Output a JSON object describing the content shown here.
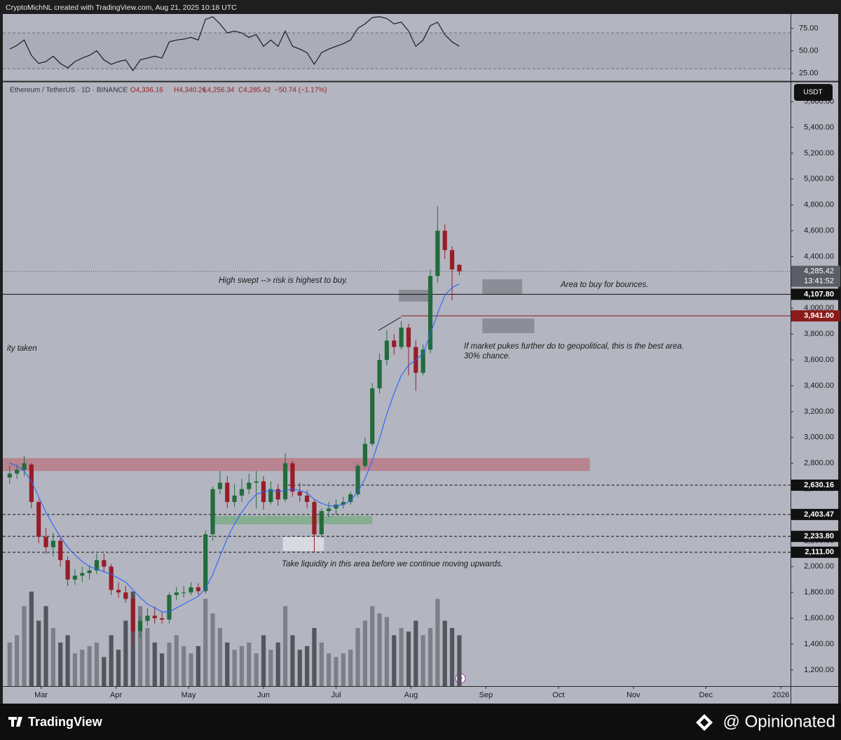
{
  "header": {
    "credit": "CryptoMichNL created with TradingView.com, Aug 21, 2025 10:18 UTC"
  },
  "chart_data": [
    {
      "type": "line",
      "color": "#1c1c1c",
      "band": [
        30,
        70
      ],
      "ylim": [
        17,
        91
      ],
      "xlim": [
        43,
        370
      ],
      "yticks": [
        {
          "value": 25,
          "label": "25.00"
        },
        {
          "value": 50,
          "label": "50.00"
        },
        {
          "value": 75,
          "label": "75.00"
        }
      ],
      "x": [
        47,
        50,
        53,
        56,
        59,
        62,
        65,
        68,
        71,
        74,
        77,
        80,
        83,
        86,
        89,
        92,
        95,
        98,
        101,
        104,
        107,
        110,
        113,
        116,
        119,
        122,
        125,
        128,
        131,
        134,
        137,
        140,
        143,
        146,
        149,
        152,
        155,
        158,
        161,
        164,
        167,
        170,
        173,
        176,
        179,
        182,
        185,
        188,
        191,
        194,
        197,
        200,
        203,
        206,
        209,
        212,
        215,
        218,
        221,
        224,
        227,
        230,
        233
      ],
      "values": [
        52,
        56,
        62,
        45,
        36,
        38,
        44,
        36,
        31,
        38,
        42,
        45,
        50,
        40,
        35,
        38,
        40,
        28,
        40,
        42,
        44,
        42,
        60,
        62,
        63,
        65,
        62,
        85,
        88,
        80,
        70,
        72,
        70,
        65,
        68,
        55,
        62,
        55,
        72,
        55,
        52,
        48,
        35,
        48,
        52,
        55,
        58,
        62,
        75,
        80,
        87,
        88,
        86,
        80,
        82,
        72,
        55,
        62,
        78,
        82,
        68,
        60,
        55
      ]
    },
    {
      "type": "candlestick",
      "symbol": "Ethereum / TetherUS · 1D · BINANCE",
      "ohlc_legend": [
        "O4,336.16",
        "H4,340.26",
        "L4,256.34",
        "C4,285.42",
        "−50.74 (−1.17%)"
      ],
      "currency": "USDT",
      "up_color": "#236b3c",
      "down_color": "#971d28",
      "volume_up_color": "#7c7f87",
      "volume_down_color": "#54565d",
      "grid": false,
      "xlim": [
        43,
        370
      ],
      "ylim": [
        1075,
        5752
      ],
      "xticks": [
        {
          "value": 60,
          "label": "Mar"
        },
        {
          "value": 91,
          "label": "Apr"
        },
        {
          "value": 121,
          "label": "May"
        },
        {
          "value": 152,
          "label": "Jun"
        },
        {
          "value": 182,
          "label": "Jul"
        },
        {
          "value": 213,
          "label": "Aug"
        },
        {
          "value": 244,
          "label": "Sep"
        },
        {
          "value": 274,
          "label": "Oct"
        },
        {
          "value": 305,
          "label": "Nov"
        },
        {
          "value": 335,
          "label": "Dec"
        },
        {
          "value": 366,
          "label": "2026"
        }
      ],
      "yticks": [
        {
          "value": 1200,
          "label": "1,200.00"
        },
        {
          "value": 1400,
          "label": "1,400.00"
        },
        {
          "value": 1600,
          "label": "1,600.00"
        },
        {
          "value": 1800,
          "label": "1,800.00"
        },
        {
          "value": 2000,
          "label": "2,000.00"
        },
        {
          "value": 2200,
          "label": "2,200.00"
        },
        {
          "value": 2400,
          "label": "2,400.00"
        },
        {
          "value": 2600,
          "label": "2,600.00"
        },
        {
          "value": 2800,
          "label": "2,800.00"
        },
        {
          "value": 3000,
          "label": "3,000.00"
        },
        {
          "value": 3200,
          "label": "3,200.00"
        },
        {
          "value": 3400,
          "label": "3,400.00"
        },
        {
          "value": 3600,
          "label": "3,600.00"
        },
        {
          "value": 3800,
          "label": "3,800.00"
        },
        {
          "value": 4000,
          "label": "4,000.00"
        },
        {
          "value": 4200,
          "label": "4,200.00"
        },
        {
          "value": 4400,
          "label": "4,400.00"
        },
        {
          "value": 4600,
          "label": "4,600.00"
        },
        {
          "value": 4800,
          "label": "4,800.00"
        },
        {
          "value": 5000,
          "label": "5,000.00"
        },
        {
          "value": 5200,
          "label": "5,200.00"
        },
        {
          "value": 5400,
          "label": "5,400.00"
        },
        {
          "value": 5600,
          "label": "5,600.00"
        }
      ],
      "x": [
        47,
        50,
        53,
        56,
        59,
        62,
        65,
        68,
        71,
        74,
        77,
        80,
        83,
        86,
        89,
        92,
        95,
        98,
        101,
        104,
        107,
        110,
        113,
        116,
        119,
        122,
        125,
        128,
        131,
        134,
        137,
        140,
        143,
        146,
        149,
        152,
        155,
        158,
        161,
        164,
        167,
        170,
        173,
        176,
        179,
        182,
        185,
        188,
        191,
        194,
        197,
        200,
        203,
        206,
        209,
        212,
        215,
        218,
        221,
        224,
        227,
        230,
        233
      ],
      "open": [
        2690,
        2720,
        2750,
        2790,
        2500,
        2230,
        2150,
        2200,
        2050,
        1900,
        1930,
        1950,
        1970,
        2050,
        2000,
        1820,
        1800,
        1750,
        1500,
        1580,
        1620,
        1600,
        1590,
        1780,
        1800,
        1800,
        1840,
        1810,
        2250,
        2600,
        2650,
        2500,
        2550,
        2600,
        2650,
        2660,
        2500,
        2600,
        2520,
        2800,
        2580,
        2550,
        2500,
        2250,
        2430,
        2450,
        2480,
        2500,
        2560,
        2780,
        2950,
        3380,
        3600,
        3750,
        3700,
        3850,
        3700,
        3500,
        3680,
        4250,
        4600,
        4450,
        4336.16
      ],
      "high": [
        2780,
        2790,
        2860,
        2800,
        2520,
        2300,
        2260,
        2230,
        2080,
        1980,
        2000,
        2010,
        2100,
        2100,
        2020,
        1880,
        1850,
        1780,
        1620,
        1680,
        1690,
        1650,
        1800,
        1840,
        1850,
        1880,
        1870,
        2280,
        2620,
        2740,
        2700,
        2640,
        2680,
        2720,
        2740,
        2700,
        2660,
        2640,
        2880,
        2820,
        2650,
        2590,
        2520,
        2450,
        2500,
        2520,
        2540,
        2580,
        2800,
        3000,
        3420,
        3650,
        3830,
        3800,
        3900,
        3880,
        3750,
        3720,
        4300,
        4790,
        4650,
        4480,
        4340.26
      ],
      "low": [
        2640,
        2680,
        2700,
        2450,
        2180,
        2100,
        2080,
        2000,
        1850,
        1860,
        1880,
        1900,
        1940,
        1960,
        1780,
        1760,
        1720,
        1390,
        1450,
        1540,
        1560,
        1560,
        1560,
        1740,
        1760,
        1780,
        1780,
        1790,
        2200,
        2560,
        2450,
        2460,
        2500,
        2560,
        2450,
        2440,
        2480,
        2470,
        2500,
        2540,
        2500,
        2450,
        2111,
        2220,
        2380,
        2400,
        2450,
        2480,
        2540,
        2760,
        2930,
        3340,
        3560,
        3640,
        3680,
        3480,
        3360,
        3480,
        3650,
        4200,
        4380,
        4060,
        4256.34
      ],
      "close": [
        2720,
        2750,
        2800,
        2500,
        2230,
        2150,
        2200,
        2050,
        1900,
        1930,
        1950,
        1970,
        2050,
        2000,
        1820,
        1800,
        1750,
        1500,
        1580,
        1620,
        1600,
        1590,
        1780,
        1800,
        1800,
        1840,
        1810,
        2250,
        2600,
        2650,
        2500,
        2550,
        2600,
        2650,
        2660,
        2500,
        2600,
        2520,
        2800,
        2580,
        2550,
        2500,
        2250,
        2430,
        2450,
        2480,
        2500,
        2560,
        2780,
        2950,
        3380,
        3600,
        3750,
        3700,
        3850,
        3700,
        3500,
        3680,
        4250,
        4600,
        4450,
        4300,
        4285.42
      ],
      "volume": [
        60,
        70,
        110,
        130,
        90,
        110,
        80,
        60,
        70,
        45,
        50,
        55,
        60,
        40,
        70,
        50,
        90,
        130,
        110,
        80,
        60,
        45,
        60,
        70,
        55,
        45,
        55,
        120,
        100,
        80,
        60,
        50,
        55,
        60,
        45,
        70,
        50,
        60,
        110,
        70,
        50,
        55,
        80,
        60,
        45,
        40,
        45,
        50,
        80,
        90,
        110,
        100,
        95,
        70,
        80,
        75,
        90,
        70,
        80,
        120,
        90,
        80,
        70
      ],
      "ma": {
        "color": "#2962ff",
        "values": [
          2800,
          2780,
          2740,
          2660,
          2540,
          2420,
          2320,
          2230,
          2150,
          2090,
          2040,
          2000,
          1980,
          1960,
          1940,
          1910,
          1880,
          1820,
          1760,
          1710,
          1680,
          1650,
          1650,
          1680,
          1710,
          1740,
          1770,
          1830,
          1940,
          2080,
          2220,
          2330,
          2420,
          2500,
          2560,
          2580,
          2590,
          2580,
          2590,
          2600,
          2590,
          2570,
          2520,
          2490,
          2470,
          2470,
          2480,
          2510,
          2580,
          2680,
          2820,
          2990,
          3180,
          3340,
          3480,
          3560,
          3600,
          3650,
          3800,
          3960,
          4100,
          4160,
          4190
        ]
      },
      "last_price": {
        "value": 4285.42,
        "label": "4,285.42",
        "countdown": "13:41:52",
        "color": "#5b5e66"
      },
      "levels": [
        {
          "value": 4107.8,
          "label": "4,107.80",
          "color": "#111111",
          "style": "solid"
        },
        {
          "value": 3941,
          "label": "3,941.00",
          "color": "#8b1a1a",
          "style": "solid",
          "from": 209
        },
        {
          "value": 2630.16,
          "label": "2,630.16",
          "color": "#111111",
          "style": "dashed",
          "from": 160
        },
        {
          "value": 2403.47,
          "label": "2,403.47",
          "color": "#111111",
          "style": "dashed"
        },
        {
          "value": 2233.8,
          "label": "2,233.80",
          "color": "#111111",
          "style": "dashed"
        },
        {
          "value": 2111,
          "label": "2,111.00",
          "color": "#111111",
          "style": "dashed"
        }
      ],
      "zones": [
        {
          "x": [
            43,
            287
          ],
          "y": [
            2740,
            2840
          ],
          "color": "rgba(190,70,85,0.45)"
        },
        {
          "x": [
            130,
            197
          ],
          "y": [
            2327,
            2392
          ],
          "color": "rgba(80,165,90,0.45)"
        },
        {
          "x": [
            208,
            222
          ],
          "y": [
            4051,
            4143
          ],
          "color": "#8b8e96"
        },
        {
          "x": [
            242.5,
            259
          ],
          "y": [
            4110,
            4224
          ],
          "color": "#8b8e96"
        },
        {
          "x": [
            242.5,
            264
          ],
          "y": [
            3807,
            3920
          ],
          "color": "#8b8e96"
        },
        {
          "x": [
            160,
            177
          ],
          "y": [
            2121,
            2230
          ],
          "color": "#d8dae0"
        }
      ],
      "annotations": [
        "High swept --> risk is highest to buy.",
        "Area to buy for bounces.",
        "ity taken",
        "If market pukes further do to geopolitical, this is the best area.",
        "30% chance.",
        "Take liquidity in this area before we continue moving upwards."
      ]
    }
  ],
  "footer": {
    "brand": "TradingView",
    "handle": "@ Opinionated"
  }
}
